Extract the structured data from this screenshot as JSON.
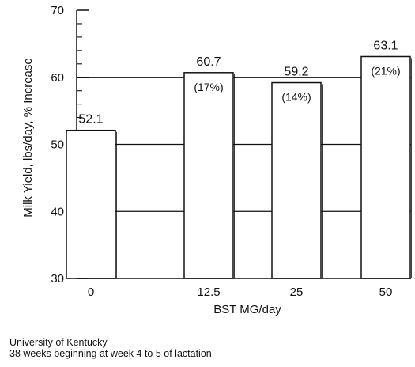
{
  "chart_data": {
    "type": "bar",
    "title": "",
    "xlabel": "BST MG/day",
    "ylabel": "Milk Yield, lbs/day, % Increase",
    "categories": [
      "0",
      "12.5",
      "25",
      "50"
    ],
    "values": [
      52.1,
      60.7,
      59.2,
      63.1
    ],
    "value_labels": [
      "52.1",
      "60.7",
      "59.2",
      "63.1"
    ],
    "percent_increase_labels": [
      "",
      "(17%)",
      "(14%)",
      "(21%)"
    ],
    "ylim": [
      30,
      70
    ],
    "yticks": [
      "30",
      "40",
      "50",
      "60",
      "70"
    ],
    "grid": "horizontal at 40, 50, 60"
  },
  "footer": {
    "line1": "University of Kentucky",
    "line2": "38 weeks beginning at week 4 to 5 of lactation"
  }
}
